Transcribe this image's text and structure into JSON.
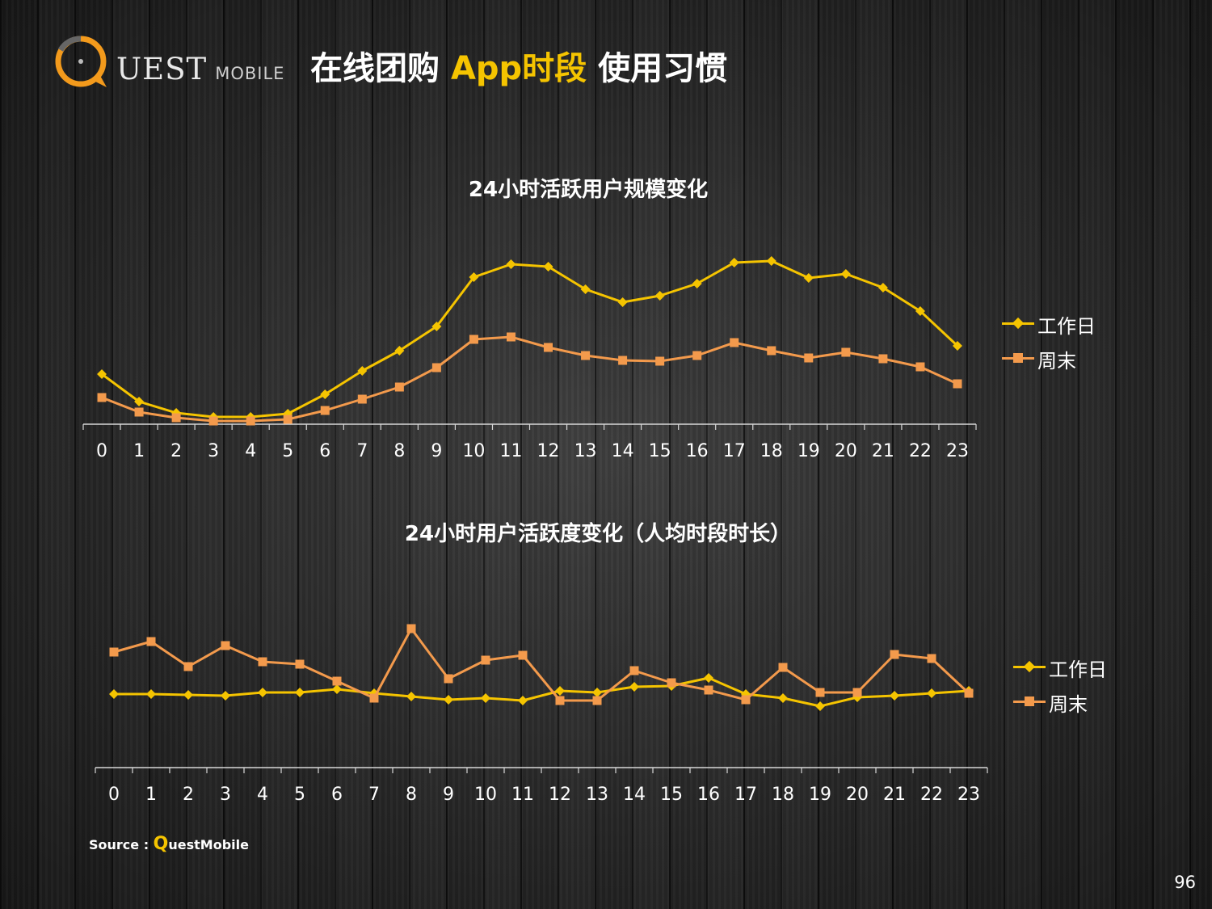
{
  "logo": {
    "text": "UEST",
    "sub": "MOBILE"
  },
  "title": {
    "part1": "在线团购 ",
    "highlight": "App时段",
    "part2": " 使用习惯"
  },
  "colors": {
    "workday": "#f5c400",
    "weekend": "#f39a4c",
    "axis": "#d8d8d8"
  },
  "chart_data": [
    {
      "type": "line",
      "title": "24小时活跃用户规模变化",
      "categories": [
        "0",
        "1",
        "2",
        "3",
        "4",
        "5",
        "6",
        "7",
        "8",
        "9",
        "10",
        "11",
        "12",
        "13",
        "14",
        "15",
        "16",
        "17",
        "18",
        "19",
        "20",
        "21",
        "22",
        "23"
      ],
      "series": [
        {
          "name": "工作日",
          "marker": "diamond",
          "values": [
            62,
            28,
            14,
            9,
            9,
            13,
            37,
            66,
            91,
            121,
            182,
            198,
            195,
            167,
            151,
            159,
            174,
            200,
            202,
            181,
            186,
            169,
            140,
            97
          ]
        },
        {
          "name": "周末",
          "marker": "square",
          "values": [
            33,
            15,
            8,
            4,
            4,
            6,
            17,
            31,
            46,
            70,
            105,
            108,
            95,
            85,
            79,
            78,
            85,
            101,
            91,
            82,
            89,
            81,
            71,
            50
          ]
        }
      ],
      "ylim": [
        0,
        215
      ],
      "legend": "right",
      "grid": false
    },
    {
      "type": "line",
      "title": "24小时用户活跃度变化（人均时段时长）",
      "categories": [
        "0",
        "1",
        "2",
        "3",
        "4",
        "5",
        "6",
        "7",
        "8",
        "9",
        "10",
        "11",
        "12",
        "13",
        "14",
        "15",
        "16",
        "17",
        "18",
        "19",
        "20",
        "21",
        "22",
        "23"
      ],
      "series": [
        {
          "name": "工作日",
          "marker": "diamond",
          "values": [
            91,
            91,
            90,
            89,
            93,
            93,
            97,
            92,
            88,
            84,
            86,
            83,
            95,
            93,
            100,
            101,
            111,
            91,
            86,
            76,
            87,
            89,
            92,
            95
          ]
        },
        {
          "name": "周末",
          "marker": "square",
          "values": [
            143,
            156,
            125,
            151,
            131,
            128,
            107,
            86,
            172,
            110,
            133,
            139,
            83,
            83,
            120,
            105,
            96,
            84,
            124,
            93,
            93,
            140,
            135,
            92
          ]
        }
      ],
      "ylim": [
        0,
        200
      ],
      "legend": "right",
      "grid": false
    }
  ],
  "source": {
    "prefix": "Source : ",
    "q": "Q",
    "rest": "uestMobile"
  },
  "page_number": "96"
}
